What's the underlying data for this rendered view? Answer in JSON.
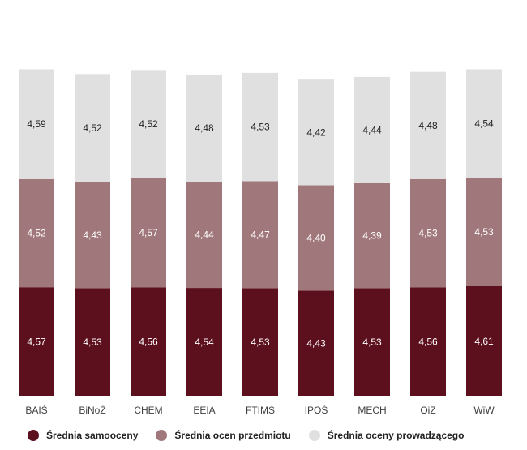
{
  "chart_data": {
    "type": "bar",
    "stacked": true,
    "categories": [
      "BAIŚ",
      "BiNoŻ",
      "CHEM",
      "EEIA",
      "FTIMS",
      "IPOŚ",
      "MECH",
      "OiZ",
      "WiW"
    ],
    "series": [
      {
        "name": "Średnia samooceny",
        "values": [
          4.57,
          4.53,
          4.56,
          4.54,
          4.53,
          4.43,
          4.53,
          4.56,
          4.61
        ],
        "labels": [
          "4,57",
          "4,53",
          "4,56",
          "4,54",
          "4,53",
          "4,43",
          "4,53",
          "4,56",
          "4,61"
        ],
        "color": "#5c0f1d",
        "label_color": "#ffffff"
      },
      {
        "name": "Średnia ocen przedmiotu",
        "values": [
          4.52,
          4.43,
          4.57,
          4.44,
          4.47,
          4.4,
          4.39,
          4.53,
          4.53
        ],
        "labels": [
          "4,52",
          "4,43",
          "4,57",
          "4,44",
          "4,47",
          "4,40",
          "4,39",
          "4,53",
          "4,53"
        ],
        "color": "#a0787b",
        "label_color": "#ffffff"
      },
      {
        "name": "Średnia oceny prowadzącego",
        "values": [
          4.59,
          4.52,
          4.52,
          4.48,
          4.53,
          4.42,
          4.44,
          4.48,
          4.54
        ],
        "labels": [
          "4,59",
          "4,52",
          "4,52",
          "4,48",
          "4,53",
          "4,42",
          "4,44",
          "4,48",
          "4,54"
        ],
        "color": "#e0e0e0",
        "label_color": "#222222"
      }
    ],
    "legend_position": "bottom",
    "grid": false
  }
}
